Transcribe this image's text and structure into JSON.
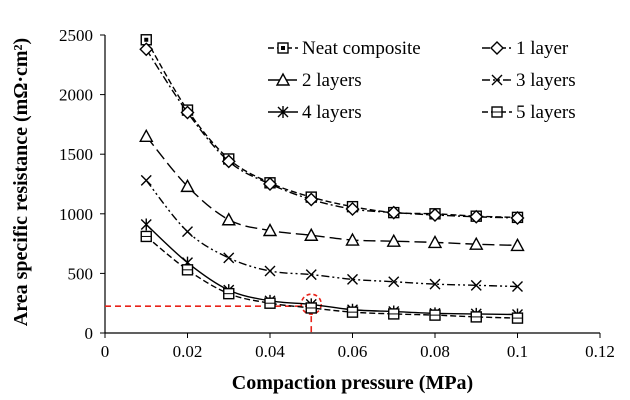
{
  "chart_data": {
    "type": "line",
    "xlabel": "Compaction pressure (MPa)",
    "ylabel": "Area specific resistance (mΩ·cm²)",
    "xlim": [
      0,
      0.12
    ],
    "ylim": [
      0,
      2500
    ],
    "x_ticks": [
      "0",
      "0.02",
      "0.04",
      "0.06",
      "0.08",
      "0.1",
      "0.12"
    ],
    "y_ticks": [
      "0",
      "500",
      "1000",
      "1500",
      "2000",
      "2500"
    ],
    "x": [
      0.01,
      0.02,
      0.03,
      0.04,
      0.05,
      0.06,
      0.07,
      0.08,
      0.09,
      0.1
    ],
    "grid": false,
    "legend_position": "top-right",
    "series": [
      {
        "name": "Neat composite",
        "marker": "square-dot",
        "line": "dash",
        "values": [
          2460,
          1870,
          1460,
          1260,
          1140,
          1060,
          1010,
          1000,
          980,
          970
        ]
      },
      {
        "name": "1 layer",
        "marker": "diamond",
        "line": "dash-dot",
        "values": [
          2380,
          1850,
          1440,
          1250,
          1120,
          1040,
          1010,
          990,
          975,
          965
        ]
      },
      {
        "name": "2 layers",
        "marker": "triangle",
        "line": "long-dash",
        "values": [
          1650,
          1230,
          950,
          860,
          820,
          780,
          770,
          760,
          745,
          735
        ]
      },
      {
        "name": "3 layers",
        "marker": "x",
        "line": "dash-dot-dot",
        "values": [
          1280,
          850,
          630,
          520,
          490,
          450,
          430,
          410,
          400,
          390
        ]
      },
      {
        "name": "4 layers",
        "marker": "star",
        "line": "solid",
        "values": [
          910,
          590,
          360,
          270,
          240,
          195,
          180,
          165,
          160,
          155
        ]
      },
      {
        "name": "5 layers",
        "marker": "square",
        "line": "dash",
        "values": [
          810,
          530,
          330,
          250,
          210,
          175,
          160,
          150,
          135,
          125
        ]
      }
    ],
    "annotation": {
      "x": 0.05,
      "y": 225,
      "color": "#e8231a",
      "style": "dashed reference lines and circle"
    }
  }
}
